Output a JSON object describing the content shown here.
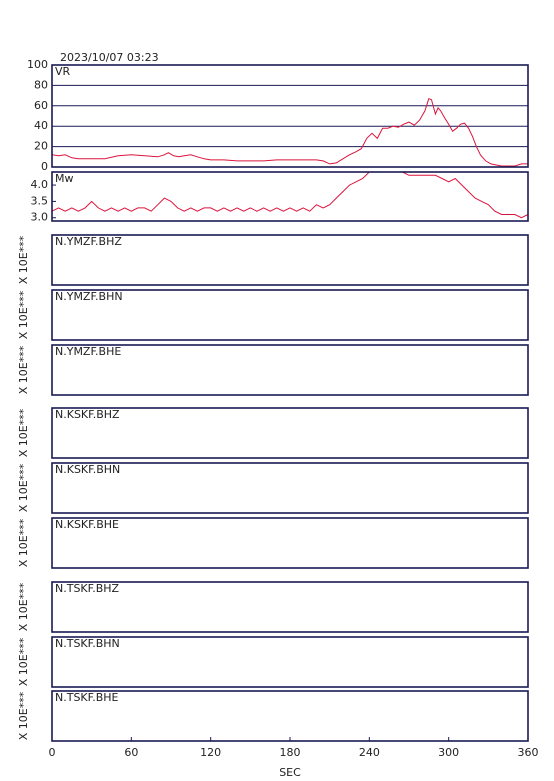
{
  "header": {
    "title": "2023/10/07 03:23"
  },
  "x_axis": {
    "xlabel": "SEC",
    "xlim": [
      0,
      360
    ],
    "xticks": [
      0,
      60,
      120,
      180,
      240,
      300,
      360
    ]
  },
  "chart_data": [
    {
      "type": "line",
      "label": "VR",
      "color": "#dc143c",
      "ylim": [
        0,
        100
      ],
      "yticks": [
        0,
        20,
        40,
        60,
        80,
        100
      ],
      "grid": true,
      "x": [
        0,
        5,
        10,
        15,
        20,
        30,
        40,
        50,
        60,
        70,
        80,
        85,
        88,
        92,
        96,
        100,
        105,
        110,
        115,
        120,
        130,
        140,
        150,
        160,
        170,
        180,
        190,
        200,
        205,
        210,
        215,
        220,
        225,
        230,
        234,
        238,
        242,
        246,
        250,
        254,
        258,
        262,
        266,
        270,
        274,
        278,
        282,
        285,
        287,
        290,
        292,
        294,
        297,
        300,
        303,
        306,
        309,
        312,
        315,
        318,
        321,
        324,
        328,
        332,
        336,
        340,
        345,
        350,
        355,
        360
      ],
      "values": [
        12,
        11,
        12,
        9,
        8,
        8,
        8,
        11,
        12,
        11,
        10,
        12,
        14,
        11,
        10,
        11,
        12,
        10,
        8,
        7,
        7,
        6,
        6,
        6,
        7,
        7,
        7,
        7,
        6,
        3,
        4,
        8,
        12,
        15,
        18,
        28,
        33,
        28,
        38,
        38,
        40,
        39,
        42,
        44,
        41,
        46,
        55,
        67,
        66,
        52,
        58,
        55,
        48,
        42,
        35,
        38,
        42,
        43,
        38,
        30,
        20,
        12,
        6,
        3,
        2,
        1,
        1,
        1,
        3,
        3
      ]
    },
    {
      "type": "line",
      "label": "Mw",
      "color": "#dc143c",
      "ylim": [
        2.9,
        4.4
      ],
      "yticks": [
        {
          "value": 3,
          "label": "3.0"
        },
        {
          "value": 3.5,
          "label": "3.5"
        },
        {
          "value": 4,
          "label": "4.0"
        }
      ],
      "grid": false,
      "x": [
        0,
        5,
        10,
        15,
        20,
        25,
        30,
        35,
        40,
        45,
        50,
        55,
        60,
        65,
        70,
        75,
        80,
        85,
        90,
        95,
        100,
        105,
        110,
        115,
        120,
        125,
        130,
        135,
        140,
        145,
        150,
        155,
        160,
        165,
        170,
        175,
        180,
        185,
        190,
        195,
        200,
        205,
        210,
        215,
        220,
        225,
        230,
        235,
        240,
        245,
        250,
        255,
        260,
        265,
        270,
        275,
        280,
        285,
        290,
        295,
        300,
        305,
        310,
        315,
        320,
        325,
        330,
        335,
        340,
        345,
        350,
        355,
        360
      ],
      "values": [
        3.2,
        3.3,
        3.2,
        3.3,
        3.2,
        3.3,
        3.5,
        3.3,
        3.2,
        3.3,
        3.2,
        3.3,
        3.2,
        3.3,
        3.3,
        3.2,
        3.4,
        3.6,
        3.5,
        3.3,
        3.2,
        3.3,
        3.2,
        3.3,
        3.3,
        3.2,
        3.3,
        3.2,
        3.3,
        3.2,
        3.3,
        3.2,
        3.3,
        3.2,
        3.3,
        3.2,
        3.3,
        3.2,
        3.3,
        3.2,
        3.4,
        3.3,
        3.4,
        3.6,
        3.8,
        4.0,
        4.1,
        4.2,
        4.4,
        4.4,
        4.4,
        4.4,
        4.4,
        4.4,
        4.3,
        4.3,
        4.3,
        4.3,
        4.3,
        4.2,
        4.1,
        4.2,
        4.0,
        3.8,
        3.6,
        3.5,
        3.4,
        3.2,
        3.1,
        3.1,
        3.1,
        3.0,
        3.1
      ]
    },
    {
      "type": "waveform",
      "label": "N.YMZF.BHZ",
      "ylabel": "X 10E***"
    },
    {
      "type": "waveform",
      "label": "N.YMZF.BHN",
      "ylabel": "X 10E***"
    },
    {
      "type": "waveform",
      "label": "N.YMZF.BHE",
      "ylabel": "X 10E***"
    },
    {
      "type": "waveform",
      "label": "N.KSKF.BHZ",
      "ylabel": "X 10E***"
    },
    {
      "type": "waveform",
      "label": "N.KSKF.BHN",
      "ylabel": "X 10E***"
    },
    {
      "type": "waveform",
      "label": "N.KSKF.BHE",
      "ylabel": "X 10E***"
    },
    {
      "type": "waveform",
      "label": "N.TSKF.BHZ",
      "ylabel": "X 10E***"
    },
    {
      "type": "waveform",
      "label": "N.TSKF.BHN",
      "ylabel": "X 10E***"
    },
    {
      "type": "waveform",
      "label": "N.TSKF.BHE",
      "ylabel": "X 10E***"
    }
  ]
}
